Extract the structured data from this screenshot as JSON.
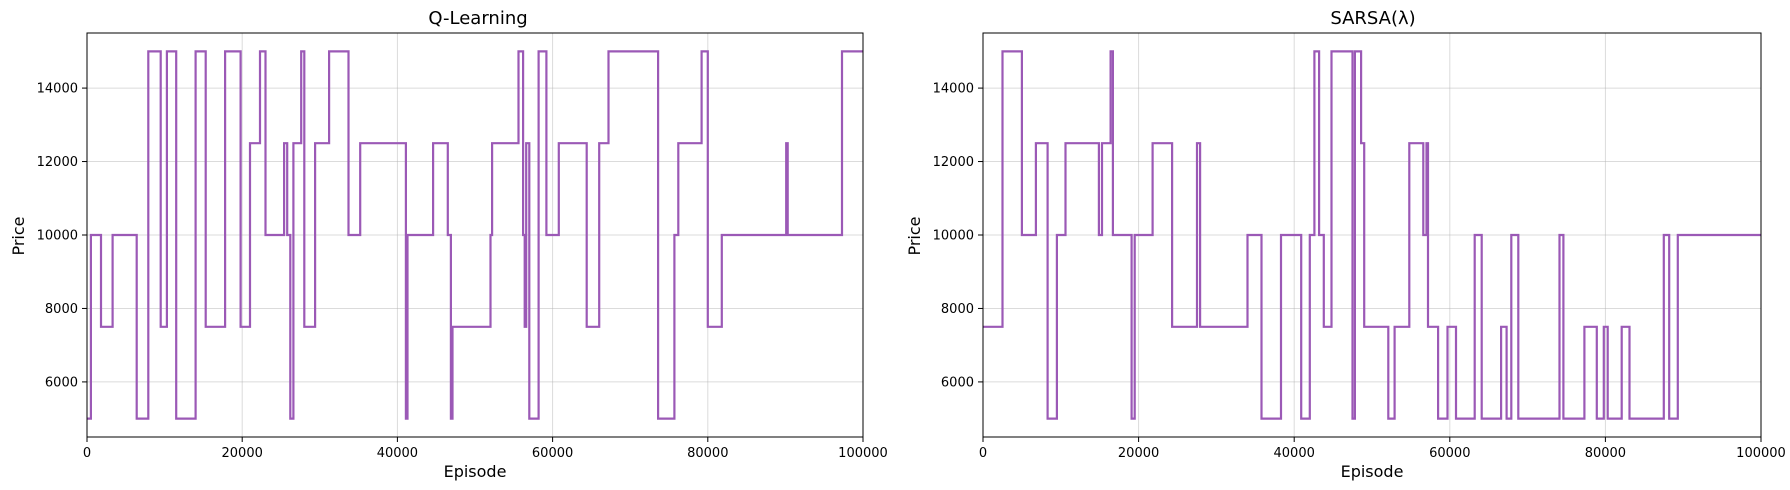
{
  "chart_data": [
    {
      "type": "line",
      "step": true,
      "title": "Q-Learning",
      "xlabel": "Episode",
      "ylabel": "Price",
      "xlim": [
        0,
        100000
      ],
      "ylim": [
        4500,
        15500
      ],
      "xticks": [
        0,
        20000,
        40000,
        60000,
        80000,
        100000
      ],
      "yticks": [
        6000,
        8000,
        10000,
        12000,
        14000
      ],
      "grid": true,
      "color": "#9b59b6",
      "series": [
        {
          "x": [
            0,
            500,
            1800,
            3300,
            6400,
            7900,
            9500,
            10300,
            11500,
            14000,
            15300,
            17800,
            19800,
            21000,
            22300,
            23000,
            25400,
            25800,
            26200,
            26600,
            27600,
            28000,
            29400,
            31200,
            33700,
            35200,
            41100,
            41300,
            44600,
            46500,
            46900,
            47100,
            52000,
            52200,
            55600,
            56200,
            56400,
            56600,
            57000,
            58200,
            59200,
            60800,
            64400,
            66000,
            66800,
            67200,
            73600,
            75700,
            76200,
            79200,
            80000,
            81800,
            90100,
            90300,
            97300,
            100000
          ],
          "y": [
            5000,
            10000,
            7500,
            10000,
            5000,
            15000,
            7500,
            15000,
            5000,
            15000,
            7500,
            15000,
            7500,
            12500,
            15000,
            10000,
            12500,
            10000,
            5000,
            12500,
            15000,
            7500,
            12500,
            15000,
            10000,
            12500,
            5000,
            10000,
            12500,
            10000,
            5000,
            7500,
            10000,
            12500,
            15000,
            10000,
            7500,
            12500,
            5000,
            15000,
            10000,
            12500,
            7500,
            12500,
            12500,
            15000,
            5000,
            10000,
            12500,
            15000,
            7500,
            10000,
            12500,
            10000,
            15000,
            15000
          ]
        }
      ]
    },
    {
      "type": "line",
      "step": true,
      "title": "SARSA(λ)",
      "xlabel": "Episode",
      "ylabel": "Price",
      "xlim": [
        0,
        100000
      ],
      "ylim": [
        4500,
        15500
      ],
      "xticks": [
        0,
        20000,
        40000,
        60000,
        80000,
        100000
      ],
      "yticks": [
        6000,
        8000,
        10000,
        12000,
        14000
      ],
      "grid": true,
      "color": "#9b59b6",
      "series": [
        {
          "x": [
            0,
            2500,
            5000,
            6800,
            8300,
            9500,
            10600,
            14900,
            15300,
            16400,
            16700,
            17600,
            19100,
            19500,
            21800,
            24300,
            27500,
            27900,
            34000,
            35800,
            38300,
            40900,
            42000,
            42600,
            43200,
            43800,
            44800,
            47500,
            47800,
            48600,
            49000,
            52100,
            52900,
            54800,
            56600,
            57000,
            57200,
            58500,
            59700,
            60800,
            63200,
            64100,
            66600,
            67300,
            67900,
            68800,
            74100,
            74600,
            77300,
            78900,
            79800,
            80300,
            82100,
            83100,
            87500,
            88200,
            89300,
            100000
          ],
          "y": [
            7500,
            15000,
            10000,
            12500,
            5000,
            10000,
            12500,
            10000,
            12500,
            15000,
            10000,
            10000,
            5000,
            10000,
            12500,
            7500,
            12500,
            7500,
            10000,
            5000,
            10000,
            5000,
            10000,
            15000,
            10000,
            7500,
            15000,
            5000,
            15000,
            12500,
            7500,
            5000,
            7500,
            12500,
            10000,
            12500,
            7500,
            5000,
            7500,
            5000,
            10000,
            5000,
            7500,
            5000,
            10000,
            5000,
            10000,
            5000,
            7500,
            5000,
            7500,
            5000,
            7500,
            5000,
            10000,
            5000,
            10000,
            10000
          ]
        }
      ]
    }
  ]
}
